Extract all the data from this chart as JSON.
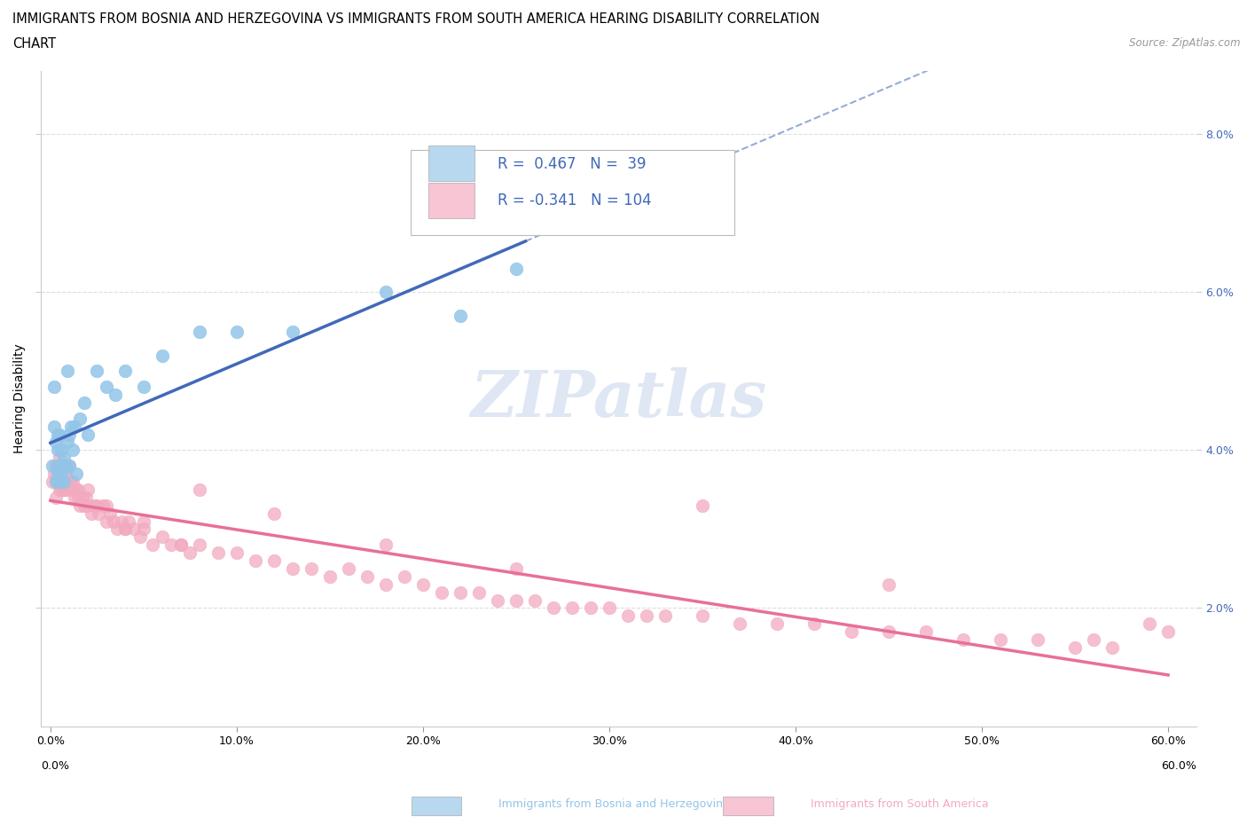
{
  "title_line1": "IMMIGRANTS FROM BOSNIA AND HERZEGOVINA VS IMMIGRANTS FROM SOUTH AMERICA HEARING DISABILITY CORRELATION",
  "title_line2": "CHART",
  "source": "Source: ZipAtlas.com",
  "ylabel": "Hearing Disability",
  "xlabel_bosnia": "Immigrants from Bosnia and Herzegovina",
  "xlabel_sa": "Immigrants from South America",
  "R_bosnia": 0.467,
  "N_bosnia": 39,
  "R_sa": -0.341,
  "N_sa": 104,
  "xlim": [
    -0.005,
    0.615
  ],
  "ylim": [
    0.005,
    0.088
  ],
  "yticks": [
    0.02,
    0.04,
    0.06,
    0.08
  ],
  "ytick_labels": [
    "2.0%",
    "4.0%",
    "6.0%",
    "8.0%"
  ],
  "xticks": [
    0.0,
    0.1,
    0.2,
    0.3,
    0.4,
    0.5,
    0.6
  ],
  "xtick_labels": [
    "0.0%",
    "10.0%",
    "20.0%",
    "30.0%",
    "40.0%",
    "50.0%",
    "60.0%"
  ],
  "color_bosnia": "#92C5E8",
  "color_sa": "#F2AABF",
  "line_color_bosnia": "#4169B8",
  "line_color_sa": "#E87098",
  "legend_box_color_bosnia": "#B8D8F0",
  "legend_box_color_sa": "#F7C5D4",
  "legend_text_color_r": "#4169B8",
  "legend_text_color_n": "#4169B8",
  "watermark_color": "#C8D8EC",
  "watermark": "ZIPatlas",
  "bosnia_x": [
    0.001,
    0.002,
    0.002,
    0.003,
    0.003,
    0.004,
    0.004,
    0.004,
    0.005,
    0.005,
    0.005,
    0.006,
    0.006,
    0.007,
    0.007,
    0.008,
    0.009,
    0.009,
    0.01,
    0.01,
    0.011,
    0.012,
    0.013,
    0.014,
    0.016,
    0.018,
    0.02,
    0.025,
    0.03,
    0.035,
    0.04,
    0.05,
    0.06,
    0.08,
    0.1,
    0.13,
    0.18,
    0.25,
    0.22
  ],
  "bosnia_y": [
    0.038,
    0.043,
    0.048,
    0.036,
    0.041,
    0.037,
    0.04,
    0.042,
    0.036,
    0.038,
    0.042,
    0.037,
    0.04,
    0.036,
    0.039,
    0.038,
    0.041,
    0.05,
    0.038,
    0.042,
    0.043,
    0.04,
    0.043,
    0.037,
    0.044,
    0.046,
    0.042,
    0.05,
    0.048,
    0.047,
    0.05,
    0.048,
    0.052,
    0.055,
    0.055,
    0.055,
    0.06,
    0.063,
    0.057
  ],
  "sa_x": [
    0.001,
    0.002,
    0.003,
    0.003,
    0.004,
    0.004,
    0.005,
    0.005,
    0.005,
    0.006,
    0.006,
    0.006,
    0.007,
    0.007,
    0.008,
    0.008,
    0.009,
    0.01,
    0.01,
    0.011,
    0.012,
    0.013,
    0.014,
    0.015,
    0.016,
    0.017,
    0.018,
    0.019,
    0.02,
    0.022,
    0.024,
    0.026,
    0.028,
    0.03,
    0.032,
    0.034,
    0.036,
    0.038,
    0.04,
    0.042,
    0.045,
    0.048,
    0.05,
    0.055,
    0.06,
    0.065,
    0.07,
    0.075,
    0.08,
    0.09,
    0.1,
    0.11,
    0.12,
    0.13,
    0.14,
    0.15,
    0.16,
    0.17,
    0.18,
    0.19,
    0.2,
    0.21,
    0.22,
    0.23,
    0.24,
    0.25,
    0.26,
    0.27,
    0.28,
    0.29,
    0.3,
    0.31,
    0.32,
    0.33,
    0.35,
    0.37,
    0.39,
    0.41,
    0.43,
    0.45,
    0.47,
    0.49,
    0.51,
    0.53,
    0.55,
    0.57,
    0.59,
    0.6,
    0.008,
    0.012,
    0.02,
    0.03,
    0.05,
    0.08,
    0.12,
    0.18,
    0.25,
    0.35,
    0.45,
    0.56,
    0.015,
    0.025,
    0.04,
    0.07
  ],
  "sa_y": [
    0.036,
    0.037,
    0.034,
    0.038,
    0.036,
    0.038,
    0.035,
    0.037,
    0.039,
    0.035,
    0.036,
    0.038,
    0.035,
    0.037,
    0.035,
    0.037,
    0.035,
    0.036,
    0.038,
    0.036,
    0.035,
    0.034,
    0.035,
    0.034,
    0.033,
    0.034,
    0.033,
    0.034,
    0.033,
    0.032,
    0.033,
    0.032,
    0.033,
    0.031,
    0.032,
    0.031,
    0.03,
    0.031,
    0.03,
    0.031,
    0.03,
    0.029,
    0.03,
    0.028,
    0.029,
    0.028,
    0.028,
    0.027,
    0.028,
    0.027,
    0.027,
    0.026,
    0.026,
    0.025,
    0.025,
    0.024,
    0.025,
    0.024,
    0.023,
    0.024,
    0.023,
    0.022,
    0.022,
    0.022,
    0.021,
    0.021,
    0.021,
    0.02,
    0.02,
    0.02,
    0.02,
    0.019,
    0.019,
    0.019,
    0.019,
    0.018,
    0.018,
    0.018,
    0.017,
    0.017,
    0.017,
    0.016,
    0.016,
    0.016,
    0.015,
    0.015,
    0.018,
    0.017,
    0.038,
    0.036,
    0.035,
    0.033,
    0.031,
    0.035,
    0.032,
    0.028,
    0.025,
    0.033,
    0.023,
    0.016,
    0.035,
    0.033,
    0.03,
    0.028
  ],
  "title_fontsize": 10.5,
  "axis_label_fontsize": 10,
  "tick_fontsize": 9,
  "legend_fontsize": 12,
  "watermark_fontsize": 52
}
